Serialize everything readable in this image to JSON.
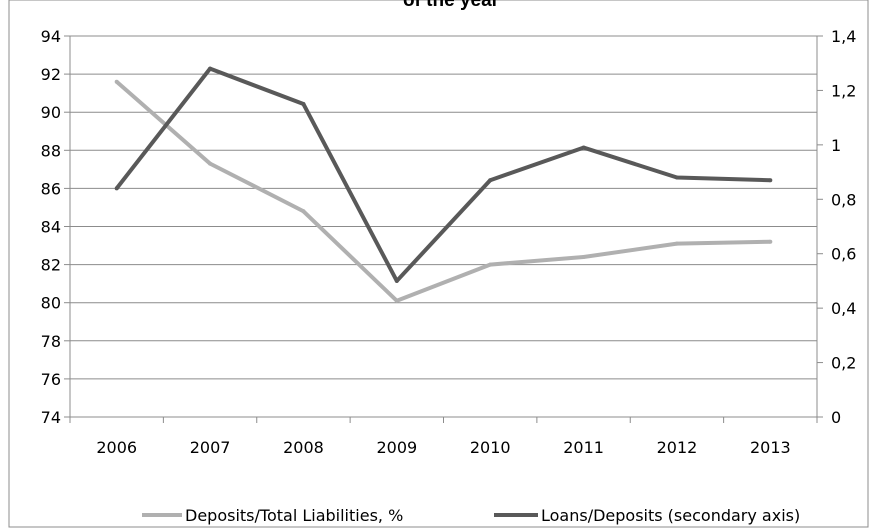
{
  "chart_data": {
    "type": "line",
    "title": "of the year",
    "categories": [
      "2006",
      "2007",
      "2008",
      "2009",
      "2010",
      "2011",
      "2012",
      "2013"
    ],
    "y_left": {
      "range": [
        74,
        94
      ],
      "ticks": [
        "74",
        "76",
        "78",
        "80",
        "82",
        "84",
        "86",
        "88",
        "90",
        "92",
        "94"
      ]
    },
    "y_right": {
      "range": [
        0,
        1.4
      ],
      "ticks": [
        "0",
        "0,2",
        "0,4",
        "0,6",
        "0,8",
        "1",
        "1,2",
        "1,4"
      ]
    },
    "series": [
      {
        "name": "Deposits/Total Liabilities, %",
        "axis": "left",
        "color": "#b0b0b0",
        "values": [
          91.6,
          87.3,
          84.8,
          80.1,
          82.0,
          82.4,
          83.1,
          83.2
        ]
      },
      {
        "name": "Loans/Deposits (secondary axis)",
        "axis": "right",
        "color": "#595959",
        "values": [
          0.84,
          1.28,
          1.15,
          0.5,
          0.87,
          0.99,
          0.88,
          0.87
        ]
      }
    ],
    "grid": true,
    "legend": "bottom"
  }
}
